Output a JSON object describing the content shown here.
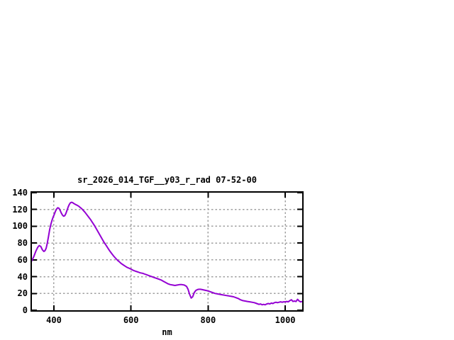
{
  "window": {
    "background": "#ffffff"
  },
  "chart_data": {
    "type": "line",
    "title": "sr_2026_014_TGF__y03_r_rad 07-52-00",
    "xlabel": "nm",
    "ylabel": "",
    "xlim": [
      343,
      1044
    ],
    "ylim": [
      0,
      140
    ],
    "xticks": [
      400,
      600,
      800,
      1000
    ],
    "yticks": [
      0,
      20,
      40,
      60,
      80,
      100,
      120,
      140
    ],
    "grid": true,
    "legend_position": "none",
    "line_color": "#9400d3",
    "grid_color": "#a0a0a0",
    "axis_color": "#000000",
    "series": [
      {
        "points": [
          [
            343,
            59
          ],
          [
            348,
            64
          ],
          [
            353,
            70
          ],
          [
            358,
            75
          ],
          [
            362,
            77
          ],
          [
            366,
            76
          ],
          [
            370,
            72
          ],
          [
            374,
            70
          ],
          [
            377,
            71
          ],
          [
            380,
            74
          ],
          [
            383,
            80
          ],
          [
            386,
            88
          ],
          [
            389,
            96
          ],
          [
            392,
            102
          ],
          [
            395,
            107
          ],
          [
            398,
            111
          ],
          [
            401,
            114
          ],
          [
            404,
            118
          ],
          [
            407,
            120.5
          ],
          [
            410,
            122
          ],
          [
            413,
            121.5
          ],
          [
            416,
            119
          ],
          [
            419,
            116
          ],
          [
            422,
            113.5
          ],
          [
            425,
            112
          ],
          [
            428,
            112.5
          ],
          [
            431,
            115
          ],
          [
            434,
            119
          ],
          [
            437,
            123
          ],
          [
            440,
            126
          ],
          [
            443,
            128
          ],
          [
            446,
            128.5
          ],
          [
            449,
            128
          ],
          [
            452,
            127
          ],
          [
            456,
            126
          ],
          [
            460,
            125
          ],
          [
            464,
            124
          ],
          [
            468,
            122.5
          ],
          [
            472,
            121
          ],
          [
            476,
            119
          ],
          [
            480,
            117
          ],
          [
            485,
            114
          ],
          [
            490,
            111
          ],
          [
            495,
            108
          ],
          [
            500,
            104.5
          ],
          [
            505,
            101
          ],
          [
            510,
            97
          ],
          [
            515,
            93
          ],
          [
            520,
            89
          ],
          [
            525,
            85
          ],
          [
            530,
            81
          ],
          [
            535,
            77.5
          ],
          [
            540,
            74
          ],
          [
            545,
            70.5
          ],
          [
            550,
            67.5
          ],
          [
            555,
            64.5
          ],
          [
            560,
            62
          ],
          [
            565,
            59.5
          ],
          [
            570,
            57.5
          ],
          [
            575,
            55.5
          ],
          [
            580,
            54
          ],
          [
            585,
            52.5
          ],
          [
            590,
            51
          ],
          [
            595,
            50
          ],
          [
            600,
            49
          ],
          [
            606,
            47.5
          ],
          [
            612,
            46.5
          ],
          [
            618,
            45.5
          ],
          [
            624,
            44.5
          ],
          [
            630,
            44
          ],
          [
            636,
            43
          ],
          [
            642,
            42
          ],
          [
            648,
            41
          ],
          [
            654,
            40
          ],
          [
            660,
            39
          ],
          [
            666,
            38
          ],
          [
            672,
            37
          ],
          [
            678,
            36
          ],
          [
            684,
            34.5
          ],
          [
            690,
            33
          ],
          [
            696,
            31.5
          ],
          [
            702,
            30.5
          ],
          [
            708,
            30
          ],
          [
            714,
            29.5
          ],
          [
            720,
            30
          ],
          [
            726,
            30.5
          ],
          [
            732,
            30.5
          ],
          [
            738,
            30
          ],
          [
            744,
            28.5
          ],
          [
            748,
            25
          ],
          [
            752,
            19
          ],
          [
            756,
            14.5
          ],
          [
            760,
            16
          ],
          [
            764,
            21
          ],
          [
            768,
            23.5
          ],
          [
            772,
            24.5
          ],
          [
            776,
            25
          ],
          [
            780,
            25
          ],
          [
            785,
            24.5
          ],
          [
            790,
            24
          ],
          [
            795,
            23.5
          ],
          [
            800,
            23
          ],
          [
            806,
            22
          ],
          [
            812,
            21
          ],
          [
            818,
            20
          ],
          [
            824,
            19.5
          ],
          [
            830,
            19
          ],
          [
            836,
            18.5
          ],
          [
            842,
            18
          ],
          [
            848,
            17.5
          ],
          [
            854,
            17
          ],
          [
            860,
            16.5
          ],
          [
            866,
            16
          ],
          [
            872,
            15
          ],
          [
            878,
            14
          ],
          [
            884,
            12.5
          ],
          [
            890,
            11.5
          ],
          [
            896,
            11
          ],
          [
            902,
            10.5
          ],
          [
            908,
            10
          ],
          [
            914,
            9.5
          ],
          [
            920,
            9
          ],
          [
            926,
            8
          ],
          [
            932,
            7
          ],
          [
            936,
            7.5
          ],
          [
            940,
            6.5
          ],
          [
            944,
            7
          ],
          [
            948,
            6.5
          ],
          [
            952,
            7.5
          ],
          [
            956,
            8
          ],
          [
            960,
            7.5
          ],
          [
            964,
            8.5
          ],
          [
            968,
            8
          ],
          [
            972,
            9
          ],
          [
            976,
            9.5
          ],
          [
            980,
            9
          ],
          [
            984,
            9.5
          ],
          [
            988,
            10
          ],
          [
            992,
            9.5
          ],
          [
            996,
            10
          ],
          [
            1000,
            10
          ],
          [
            1004,
            10.5
          ],
          [
            1008,
            10
          ],
          [
            1012,
            11.5
          ],
          [
            1016,
            12.5
          ],
          [
            1020,
            10.5
          ],
          [
            1024,
            11
          ],
          [
            1028,
            10.5
          ],
          [
            1032,
            13
          ],
          [
            1036,
            11
          ],
          [
            1040,
            10
          ],
          [
            1044,
            10.5
          ]
        ]
      }
    ]
  }
}
